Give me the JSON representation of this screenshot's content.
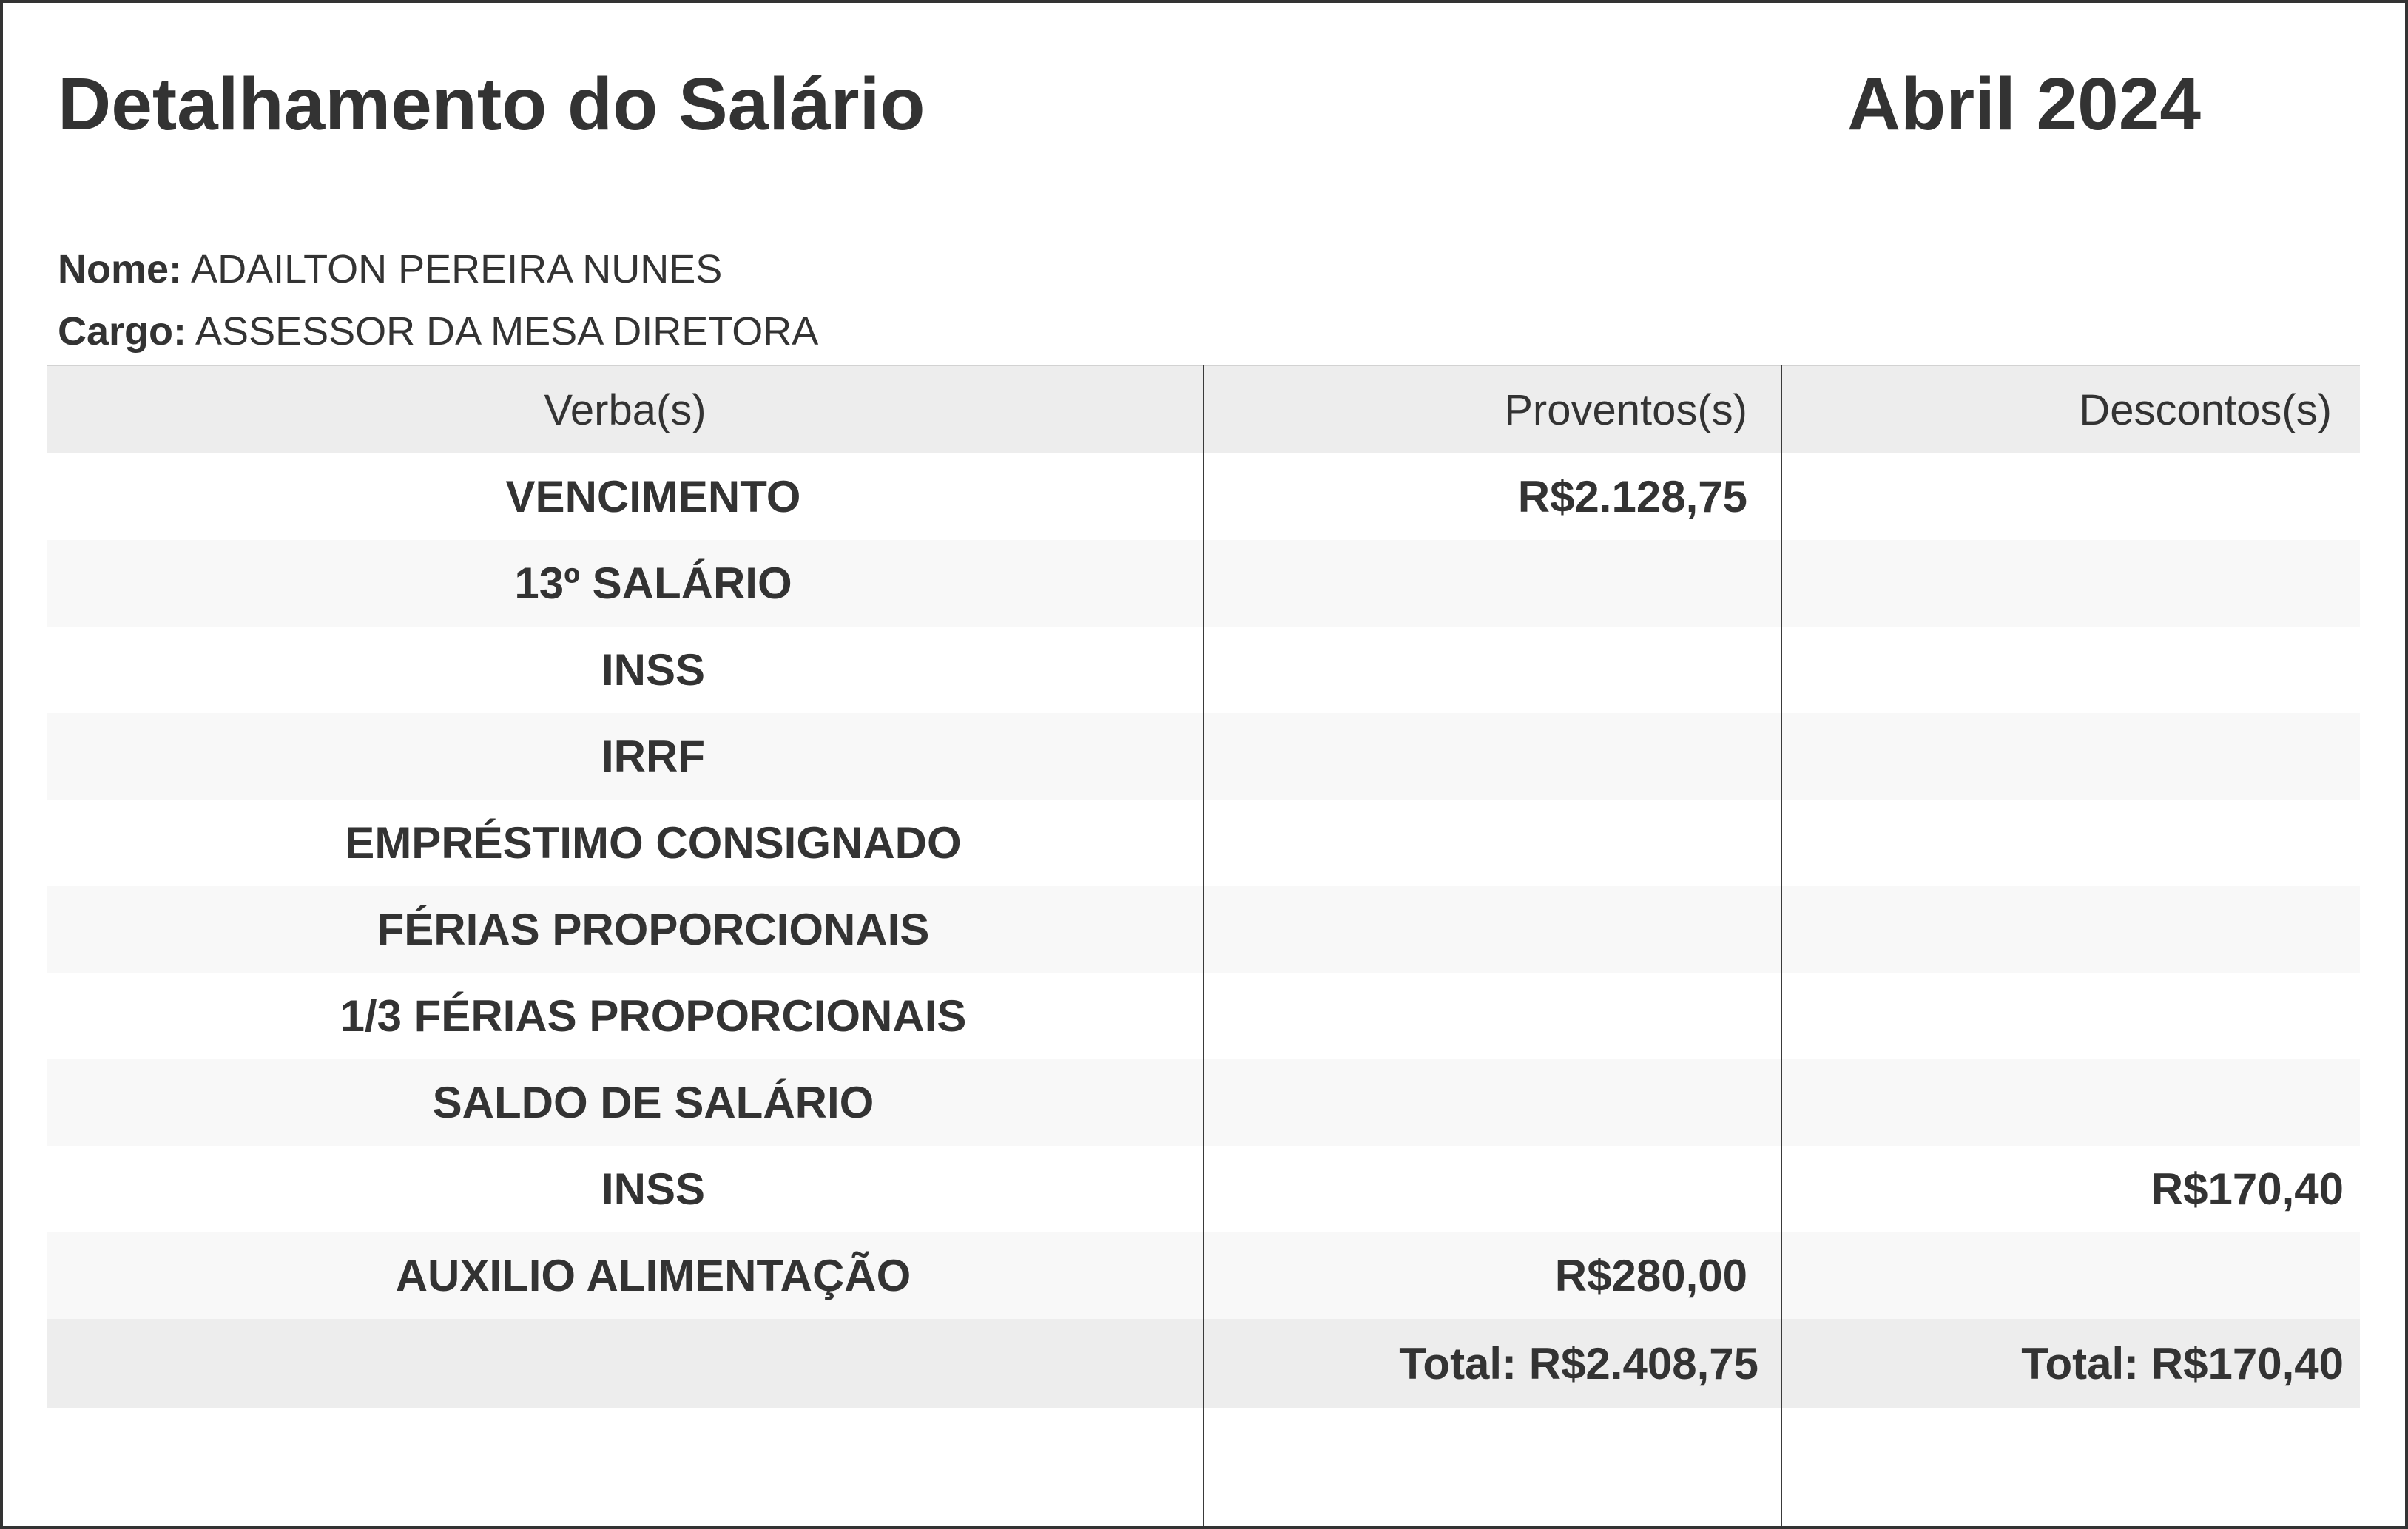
{
  "page": {
    "title": "Detalhamento do Salário",
    "period": "Abril 2024",
    "employee": {
      "name_label": "Nome:",
      "name": "ADAILTON PEREIRA NUNES",
      "role_label": "Cargo:",
      "role": "ASSESSOR DA MESA DIRETORA"
    }
  },
  "table": {
    "headers": {
      "verba": "Verba(s)",
      "proventos": "Proventos(s)",
      "descontos": "Descontos(s)"
    },
    "rows": [
      {
        "verba": "VENCIMENTO",
        "proventos": "R$2.128,75",
        "descontos": ""
      },
      {
        "verba": "13º SALÁRIO",
        "proventos": "",
        "descontos": ""
      },
      {
        "verba": "INSS",
        "proventos": "",
        "descontos": ""
      },
      {
        "verba": "IRRF",
        "proventos": "",
        "descontos": ""
      },
      {
        "verba": "EMPRÉSTIMO CONSIGNADO",
        "proventos": "",
        "descontos": ""
      },
      {
        "verba": "FÉRIAS PROPORCIONAIS",
        "proventos": "",
        "descontos": ""
      },
      {
        "verba": "1/3 FÉRIAS PROPORCIONAIS",
        "proventos": "",
        "descontos": ""
      },
      {
        "verba": "SALDO DE SALÁRIO",
        "proventos": "",
        "descontos": ""
      },
      {
        "verba": "INSS",
        "proventos": "",
        "descontos": "R$170,40"
      },
      {
        "verba": "AUXILIO ALIMENTAÇÃO",
        "proventos": "R$280,00",
        "descontos": ""
      }
    ],
    "totals": {
      "proventos": "Total: R$2.408,75",
      "descontos": "Total: R$170,40"
    }
  },
  "colors": {
    "text": "#333333",
    "border": "#333333",
    "page_bg": "#ffffff",
    "header_bg": "#ededed",
    "alt_row_bg": "#f8f8f8",
    "total_row_bg": "#ededed",
    "divider": "#3a3a3a"
  }
}
